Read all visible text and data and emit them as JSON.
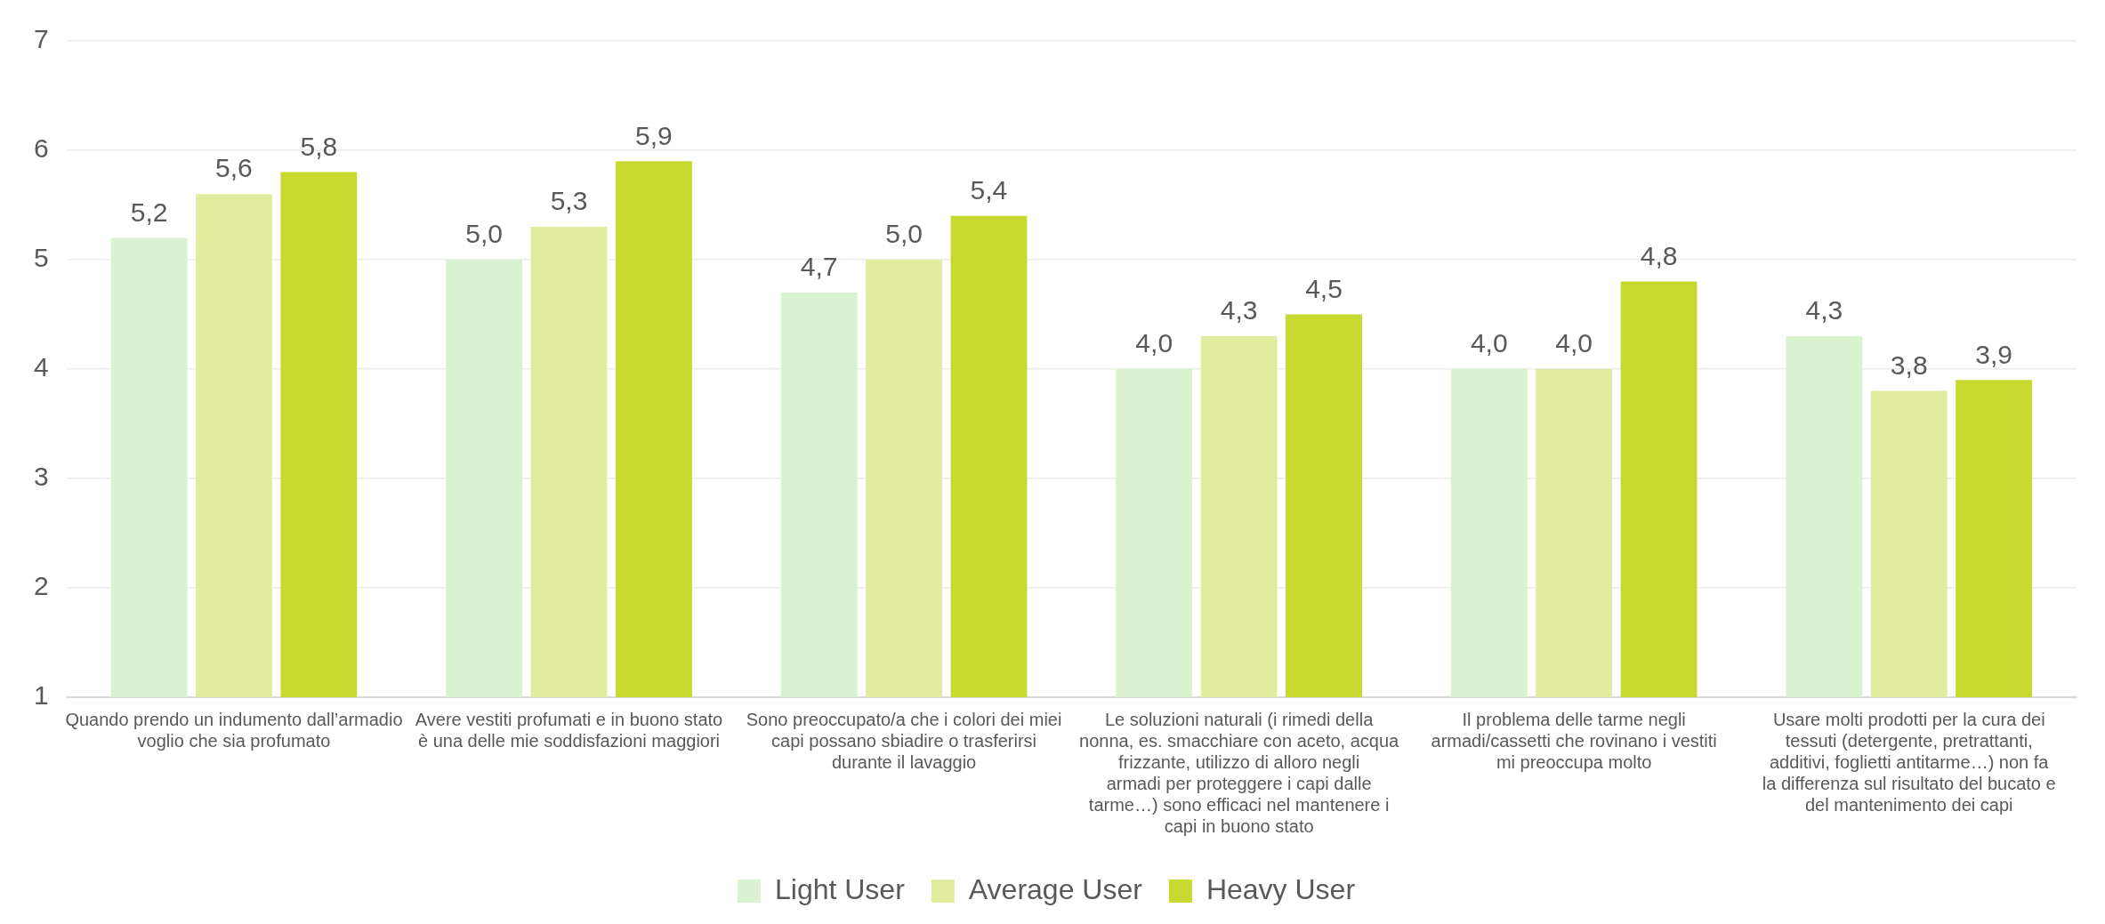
{
  "chart_data": {
    "type": "bar",
    "categories": [
      "Quando prendo un indumento dall’armadio voglio che sia profumato",
      "Avere vestiti profumati e in buono stato è una delle mie soddisfazioni maggiori",
      "Sono preoccupato/a che i colori dei miei capi possano sbiadire o trasferirsi durante il lavaggio",
      "Le soluzioni naturali (i rimedi della nonna, es. smacchiare con aceto, acqua frizzante, utilizzo di alloro negli armadi per proteggere i capi dalle tarme…) sono efficaci nel mantenere i capi in buono stato",
      "Il problema delle tarme negli armadi/cassetti che rovinano i vestiti mi preoccupa molto",
      "Usare molti prodotti per la cura dei tessuti (detergente, pretrattanti, additivi, foglietti antitarme…) non fa la differenza sul risultato del bucato e del mantenimento dei capi"
    ],
    "series": [
      {
        "name": "Light User",
        "color": "#d9f2d0",
        "values": [
          5.2,
          5.0,
          4.7,
          4.0,
          4.0,
          4.3
        ],
        "value_labels": [
          "5,2",
          "5,0",
          "4,7",
          "4,0",
          "4,0",
          "4,3"
        ]
      },
      {
        "name": "Average User",
        "color": "#e2ec9f",
        "values": [
          5.6,
          5.3,
          5.0,
          4.3,
          4.0,
          3.8
        ],
        "value_labels": [
          "5,6",
          "5,3",
          "5,0",
          "4,3",
          "4,0",
          "3,8"
        ]
      },
      {
        "name": "Heavy User",
        "color": "#c6da2f",
        "values": [
          5.8,
          5.9,
          5.4,
          4.5,
          4.8,
          3.9
        ],
        "value_labels": [
          "5,8",
          "5,9",
          "5,4",
          "4,5",
          "4,8",
          "3,9"
        ]
      }
    ],
    "ylim": [
      1,
      7
    ],
    "yticks": [
      1,
      2,
      3,
      4,
      5,
      6,
      7
    ],
    "grid": "y",
    "legend": "bottom"
  }
}
